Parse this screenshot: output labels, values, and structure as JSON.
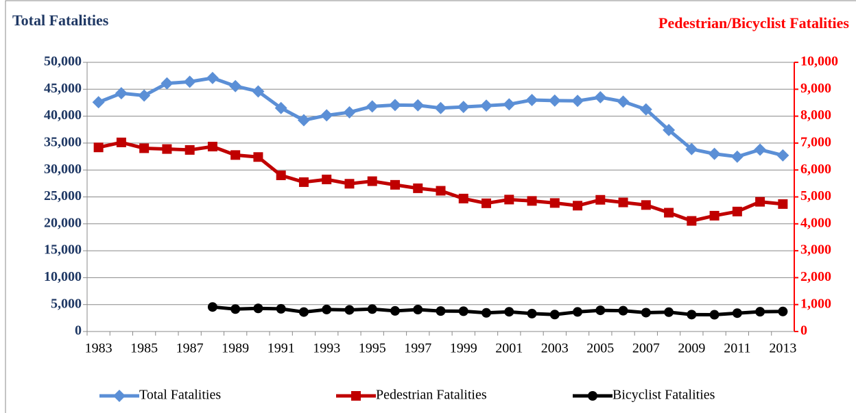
{
  "chart_data": {
    "type": "line",
    "title": "Total Fatalities",
    "y2_title": "Pedestrian/Bicyclist Fatalities",
    "categories": [
      "1983",
      null,
      "1985",
      null,
      "1987",
      null,
      "1989",
      null,
      "1991",
      null,
      "1993",
      null,
      "1995",
      null,
      "1997",
      null,
      "1999",
      null,
      "2001",
      null,
      "2003",
      null,
      "2005",
      null,
      "2007",
      null,
      "2009",
      null,
      "2011",
      null,
      "2013"
    ],
    "series": [
      {
        "name": "Total Fatalities",
        "color": "#5b8fd6",
        "marker": "diamond",
        "axis": "y",
        "values": [
          42589,
          44257,
          43825,
          46087,
          46390,
          47087,
          45582,
          44599,
          41508,
          39250,
          40150,
          40716,
          41817,
          42065,
          42013,
          41501,
          41717,
          41945,
          42196,
          43005,
          42884,
          42836,
          43510,
          42708,
          41259,
          37423,
          33883,
          32999,
          32479,
          33782,
          32719
        ]
      },
      {
        "name": "Pedestrian Fatalities",
        "color": "#c00000",
        "marker": "square",
        "axis": "y2",
        "values": [
          6839,
          7025,
          6808,
          6779,
          6745,
          6870,
          6556,
          6482,
          5801,
          5549,
          5649,
          5489,
          5584,
          5449,
          5321,
          5228,
          4939,
          4763,
          4901,
          4851,
          4774,
          4675,
          4892,
          4795,
          4699,
          4414,
          4109,
          4302,
          4457,
          4818,
          4735
        ]
      },
      {
        "name": "Bicyclist Fatalities",
        "color": "#000000",
        "marker": "circle",
        "axis": "y2",
        "values": [
          null,
          null,
          null,
          null,
          null,
          911,
          832,
          859,
          843,
          723,
          816,
          802,
          833,
          765,
          814,
          760,
          754,
          693,
          732,
          665,
          629,
          727,
          786,
          772,
          701,
          718,
          628,
          623,
          682,
          734,
          743
        ]
      }
    ],
    "ylim": [
      0,
      50000
    ],
    "yticks": [
      0,
      {
        "value": 5000,
        "label": "5,000"
      },
      {
        "value": 10000,
        "label": "10,000"
      },
      {
        "value": 15000,
        "label": "15,000"
      },
      {
        "value": 20000,
        "label": "20,000"
      },
      {
        "value": 25000,
        "label": "25,000"
      },
      {
        "value": 30000,
        "label": "30,000"
      },
      {
        "value": 35000,
        "label": "35,000"
      },
      {
        "value": 40000,
        "label": "40,000"
      },
      {
        "value": 45000,
        "label": "45,000"
      },
      {
        "value": 50000,
        "label": "50,000"
      }
    ],
    "y2lim": [
      0,
      10000
    ],
    "y2ticks": [
      0,
      {
        "value": 1000,
        "label": "1,000"
      },
      {
        "value": 2000,
        "label": "2,000"
      },
      {
        "value": 3000,
        "label": "3,000"
      },
      {
        "value": 4000,
        "label": "4,000"
      },
      {
        "value": 5000,
        "label": "5,000"
      },
      {
        "value": 6000,
        "label": "6,000"
      },
      {
        "value": 7000,
        "label": "7,000"
      },
      {
        "value": 8000,
        "label": "8,000"
      },
      {
        "value": 9000,
        "label": "9,000"
      },
      {
        "value": 10000,
        "label": "10,000"
      }
    ],
    "grid": true,
    "legend": "bottom",
    "y_color": "#1f3864",
    "y2_color": "#ff0000"
  }
}
